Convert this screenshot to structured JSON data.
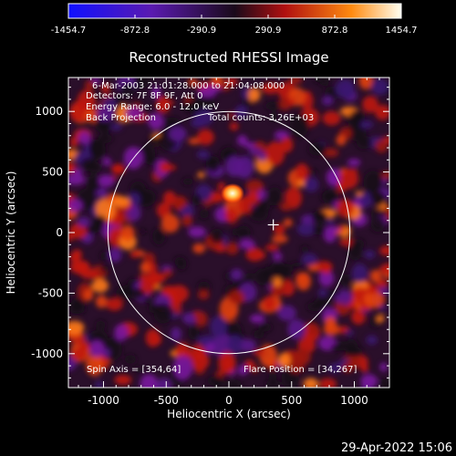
{
  "colorbar": {
    "ticks": [
      "-1454.7",
      "-872.8",
      "-290.9",
      "290.9",
      "872.8",
      "1454.7"
    ],
    "tick_values": [
      -1454.7,
      -872.8,
      -290.9,
      290.9,
      872.8,
      1454.7
    ],
    "min": -1454.7,
    "max": 1454.7
  },
  "figure": {
    "title": "Reconstructed RHESSI Image",
    "ylabel": "Heliocentric Y (arcsec)",
    "xlabel": "Heliocentric X (arcsec)",
    "annotations": {
      "time_range": "6-Mar-2003 21:01:28.000 to 21:04:08.000",
      "detectors": "Detectors: 7F 8F 9F, Att 0",
      "energy": "Energy Range: 6.0 - 12.0 keV",
      "method": "Back Projection",
      "counts": "Total counts: 3.26E+03",
      "spin_axis": "Spin Axis = [354,64]",
      "flare_position": "Flare Position = [34,267]"
    },
    "x_ticks": [
      "-1000",
      "-500",
      "0",
      "500",
      "1000"
    ],
    "x_tick_values": [
      -1000,
      -500,
      0,
      500,
      1000
    ],
    "y_ticks": [
      "1000",
      "500",
      "0",
      "-500",
      "-1000"
    ],
    "y_tick_values": [
      1000,
      500,
      0,
      -500,
      -1000
    ],
    "xlim": [
      -1280,
      1280
    ],
    "ylim": [
      -1280,
      1280
    ],
    "solar_limb_radius_arcsec": 965,
    "marker_position_arcsec": [
      354,
      64
    ]
  },
  "footer": {
    "date": "29-Apr-2022 15:06"
  },
  "colors": {
    "background": "#000000",
    "limb": "#ffffff",
    "cmap": [
      "#1a14ff",
      "#6a1aa8",
      "#2a0f2a",
      "#c01810",
      "#ff7010",
      "#fff8e0"
    ]
  }
}
